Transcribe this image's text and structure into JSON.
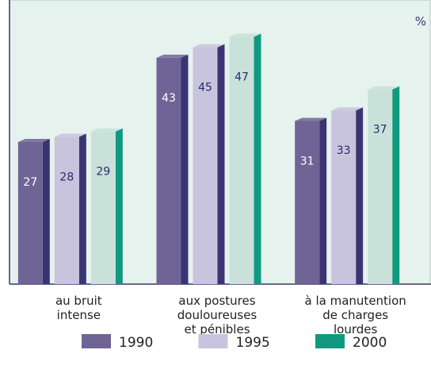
{
  "chart_data": {
    "type": "bar3d",
    "unit_label": "%",
    "categories": [
      "au bruit\nintense",
      "aux postures\ndouloureuses\net pénibles",
      "à la manutention\nde charges\nlourdes"
    ],
    "series": [
      {
        "name": "1990",
        "color": "#6f6496",
        "edge_color": "#3a3572",
        "values": [
          27,
          43,
          31
        ]
      },
      {
        "name": "1995",
        "color": "#c9c4dd",
        "edge_color": "#3a3572",
        "values": [
          28,
          45,
          33
        ]
      },
      {
        "name": "2000",
        "color": "#0f9a80",
        "face_color": "#c8e2da",
        "edge_color": "#0f9a80",
        "values": [
          29,
          47,
          37
        ]
      }
    ],
    "ylim": [
      0,
      54
    ]
  }
}
